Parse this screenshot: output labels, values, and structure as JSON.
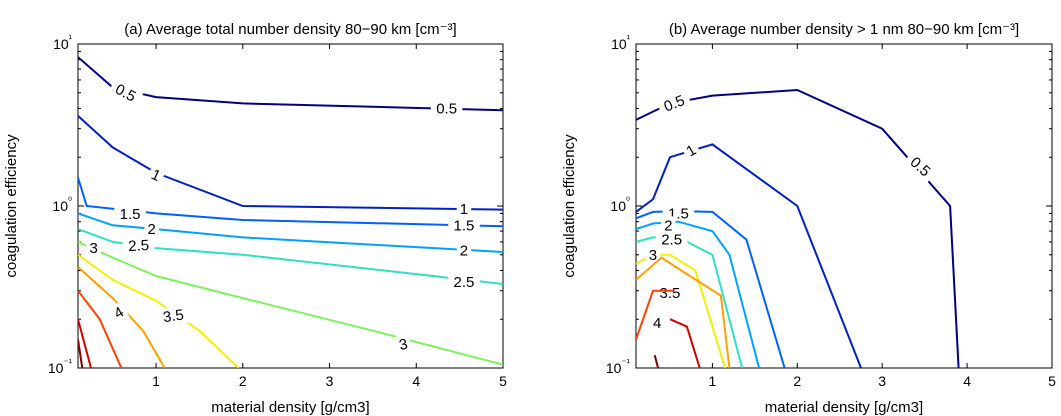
{
  "chart_data": [
    {
      "type": "contour",
      "title": "(a) Average total number density  80−90 km [cm⁻³]",
      "xlabel": "material density [g/cm3]",
      "ylabel": "coagulation efficiency",
      "xlim": [
        0.1,
        5
      ],
      "ylim": [
        0.1,
        10
      ],
      "yscale": "log",
      "xticks": [
        "1",
        "2",
        "3",
        "4",
        "5"
      ],
      "yticks": [
        "10⁻¹",
        "10⁰",
        "10¹"
      ],
      "grid": false,
      "contours": [
        {
          "level": "0.5",
          "color": "#000080",
          "points": [
            [
              0.1,
              8.3
            ],
            [
              0.5,
              5.4
            ],
            [
              1,
              4.7
            ],
            [
              2,
              4.3
            ],
            [
              5,
              3.9
            ]
          ],
          "labels": [
            {
              "text": "0.5",
              "at": [
                0.65,
                5.0
              ],
              "rot": 28
            },
            {
              "text": "0.5",
              "at": [
                4.35,
                4.0
              ],
              "rot": 0
            }
          ]
        },
        {
          "level": "1",
          "color": "#0020c0",
          "points": [
            [
              0.1,
              3.6
            ],
            [
              0.5,
              2.3
            ],
            [
              1,
              1.6
            ],
            [
              2,
              1.0
            ],
            [
              5,
              0.95
            ]
          ],
          "labels": [
            {
              "text": "1",
              "at": [
                1.0,
                1.55
              ],
              "rot": 25
            },
            {
              "text": "1",
              "at": [
                4.55,
                0.96
              ],
              "rot": 0
            }
          ]
        },
        {
          "level": "1.5",
          "color": "#0060ff",
          "points": [
            [
              0.1,
              1.5
            ],
            [
              0.2,
              1.0
            ],
            [
              1,
              0.9
            ],
            [
              2,
              0.82
            ],
            [
              5,
              0.75
            ]
          ],
          "labels": [
            {
              "text": "1.5",
              "at": [
                0.7,
                0.89
              ],
              "rot": 0
            },
            {
              "text": "1.5",
              "at": [
                4.55,
                0.76
              ],
              "rot": 0
            }
          ]
        },
        {
          "level": "2",
          "color": "#00a0ff",
          "points": [
            [
              0.1,
              0.9
            ],
            [
              0.5,
              0.76
            ],
            [
              1,
              0.72
            ],
            [
              2,
              0.64
            ],
            [
              5,
              0.52
            ]
          ],
          "labels": [
            {
              "text": "2",
              "at": [
                0.95,
                0.72
              ],
              "rot": 0
            },
            {
              "text": "2",
              "at": [
                4.55,
                0.53
              ],
              "rot": 0
            }
          ]
        },
        {
          "level": "2.5",
          "color": "#30e0c0",
          "points": [
            [
              0.1,
              0.72
            ],
            [
              0.5,
              0.6
            ],
            [
              1,
              0.55
            ],
            [
              2,
              0.5
            ],
            [
              4,
              0.38
            ],
            [
              5,
              0.33
            ]
          ],
          "labels": [
            {
              "text": "2.5",
              "at": [
                0.8,
                0.57
              ],
              "rot": -3
            },
            {
              "text": "2.5",
              "at": [
                4.55,
                0.34
              ],
              "rot": 0
            }
          ]
        },
        {
          "level": "3",
          "color": "#80f060",
          "points": [
            [
              0.1,
              0.6
            ],
            [
              0.5,
              0.48
            ],
            [
              1,
              0.37
            ],
            [
              2,
              0.27
            ],
            [
              3.5,
              0.17
            ],
            [
              5,
              0.105
            ]
          ],
          "labels": [
            {
              "text": "3",
              "at": [
                0.28,
                0.55
              ],
              "rot": 0
            },
            {
              "text": "3",
              "at": [
                3.85,
                0.14
              ],
              "rot": -12
            }
          ]
        },
        {
          "level": "3.5",
          "color": "#f0f000",
          "points": [
            [
              0.1,
              0.5
            ],
            [
              0.5,
              0.35
            ],
            [
              1,
              0.26
            ],
            [
              1.5,
              0.17
            ],
            [
              1.95,
              0.1
            ]
          ],
          "labels": [
            {
              "text": "3.5",
              "at": [
                1.2,
                0.21
              ],
              "rot": -8
            }
          ]
        },
        {
          "level": "4",
          "color": "#ffa000",
          "points": [
            [
              0.1,
              0.42
            ],
            [
              0.5,
              0.27
            ],
            [
              0.85,
              0.17
            ],
            [
              1.1,
              0.1
            ]
          ],
          "labels": [
            {
              "text": "4",
              "at": [
                0.57,
                0.22
              ],
              "rot": -30
            }
          ]
        },
        {
          "level": "4.5",
          "color": "#ff4000",
          "points": [
            [
              0.1,
              0.3
            ],
            [
              0.35,
              0.2
            ],
            [
              0.6,
              0.1
            ]
          ],
          "labels": []
        },
        {
          "level": "5",
          "color": "#d00000",
          "points": [
            [
              0.1,
              0.2
            ],
            [
              0.25,
              0.1
            ]
          ],
          "labels": []
        },
        {
          "level": "5.5",
          "color": "#800000",
          "points": [
            [
              0.1,
              0.15
            ],
            [
              0.15,
              0.1
            ]
          ],
          "labels": []
        }
      ]
    },
    {
      "type": "contour",
      "title": "(b) Average number density > 1 nm 80−90 km [cm⁻³]",
      "xlabel": "material density [g/cm3]",
      "ylabel": "coagulation efficiency",
      "xlim": [
        0.1,
        5
      ],
      "ylim": [
        0.1,
        10
      ],
      "yscale": "log",
      "xticks": [
        "1",
        "2",
        "3",
        "4",
        "5"
      ],
      "yticks": [
        "10⁻¹",
        "10⁰",
        "10¹"
      ],
      "grid": false,
      "contours": [
        {
          "level": "0.5",
          "color": "#000080",
          "points": [
            [
              0.1,
              3.4
            ],
            [
              0.5,
              4.3
            ],
            [
              1,
              4.8
            ],
            [
              2,
              5.2
            ],
            [
              3,
              3.0
            ],
            [
              3.8,
              1.0
            ],
            [
              3.9,
              0.1
            ]
          ],
          "labels": [
            {
              "text": "0.5",
              "at": [
                0.55,
                4.3
              ],
              "rot": -22
            },
            {
              "text": "0.5",
              "at": [
                3.45,
                1.75
              ],
              "rot": 42
            }
          ]
        },
        {
          "level": "1",
          "color": "#0020c0",
          "points": [
            [
              0.1,
              0.92
            ],
            [
              0.3,
              1.1
            ],
            [
              0.5,
              2.0
            ],
            [
              1,
              2.4
            ],
            [
              2,
              1.0
            ],
            [
              2.75,
              0.1
            ]
          ],
          "labels": [
            {
              "text": "1",
              "at": [
                0.75,
                2.2
              ],
              "rot": -30
            }
          ]
        },
        {
          "level": "1.5",
          "color": "#0060ff",
          "points": [
            [
              0.1,
              0.84
            ],
            [
              0.3,
              0.92
            ],
            [
              0.6,
              0.93
            ],
            [
              1,
              0.92
            ],
            [
              1.4,
              0.62
            ],
            [
              1.85,
              0.1
            ]
          ],
          "labels": [
            {
              "text": "1.5",
              "at": [
                0.6,
                0.9
              ],
              "rot": 0
            }
          ]
        },
        {
          "level": "2",
          "color": "#00a0ff",
          "points": [
            [
              0.1,
              0.72
            ],
            [
              0.3,
              0.78
            ],
            [
              0.6,
              0.8
            ],
            [
              1,
              0.7
            ],
            [
              1.2,
              0.5
            ],
            [
              1.55,
              0.1
            ]
          ],
          "labels": [
            {
              "text": "2",
              "at": [
                0.48,
                0.76
              ],
              "rot": 0
            }
          ]
        },
        {
          "level": "2.5",
          "color": "#30e0c0",
          "points": [
            [
              0.1,
              0.6
            ],
            [
              0.3,
              0.64
            ],
            [
              0.6,
              0.64
            ],
            [
              1,
              0.5
            ],
            [
              1.35,
              0.1
            ]
          ],
          "labels": [
            {
              "text": "2.5",
              "at": [
                0.52,
                0.62
              ],
              "rot": 0
            }
          ]
        },
        {
          "level": "3",
          "color": "#f0f000",
          "points": [
            [
              0.1,
              0.44
            ],
            [
              0.3,
              0.5
            ],
            [
              0.5,
              0.5
            ],
            [
              0.8,
              0.4
            ],
            [
              1.15,
              0.1
            ]
          ],
          "labels": [
            {
              "text": "3",
              "at": [
                0.3,
                0.5
              ],
              "rot": 0
            }
          ]
        },
        {
          "level": "3.5",
          "color": "#ffa000",
          "points": [
            [
              0.1,
              0.35
            ],
            [
              0.4,
              0.48
            ],
            [
              0.7,
              0.38
            ],
            [
              1.1,
              0.28
            ],
            [
              1.2,
              0.1
            ]
          ],
          "labels": [
            {
              "text": "3.5",
              "at": [
                0.5,
                0.29
              ],
              "rot": 0
            }
          ]
        },
        {
          "level": "4",
          "color": "#ff4000",
          "points": [
            [
              0.1,
              0.15
            ],
            [
              0.3,
              0.3
            ],
            [
              0.55,
              0.3
            ]
          ],
          "labels": [
            {
              "text": "4",
              "at": [
                0.35,
                0.19
              ],
              "rot": 0
            }
          ]
        },
        {
          "level": "4.5",
          "color": "#d00000",
          "points": [
            [
              0.5,
              0.2
            ],
            [
              0.7,
              0.18
            ],
            [
              0.85,
              0.1
            ]
          ],
          "labels": []
        },
        {
          "level": "5",
          "color": "#800000",
          "points": [
            [
              0.32,
              0.12
            ],
            [
              0.36,
              0.1
            ]
          ],
          "labels": []
        }
      ]
    }
  ]
}
